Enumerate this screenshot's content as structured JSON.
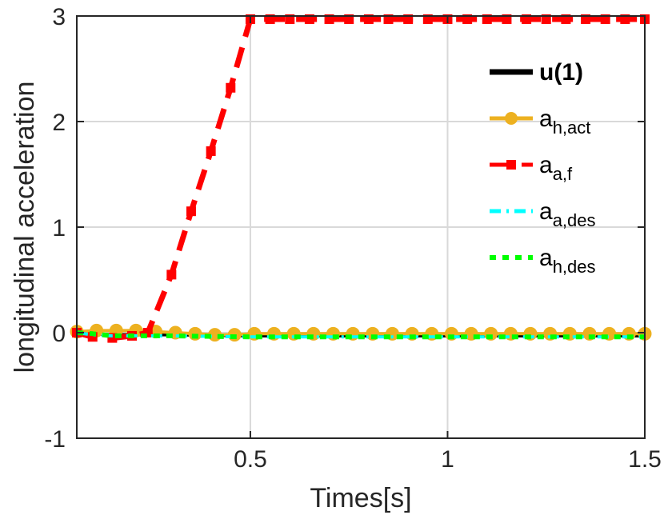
{
  "chart_data": {
    "type": "line",
    "xlabel": "Times[s]",
    "ylabel": "longitudinal acceleration",
    "xlim": [
      0.06,
      1.5
    ],
    "ylim": [
      -1,
      3
    ],
    "xticks": [
      0.5,
      1,
      1.5
    ],
    "xtick_labels": [
      "0.5",
      "1",
      "1.5"
    ],
    "yticks": [
      -1,
      0,
      1,
      2,
      3
    ],
    "ytick_labels": [
      "-1",
      "0",
      "1",
      "2",
      "3"
    ],
    "grid": true,
    "legend_position": "top-right",
    "series": [
      {
        "name": "u(1)",
        "label_main": "u(1)",
        "label_sub": "",
        "color": "#000000",
        "style": "solid",
        "marker": "none",
        "x": [
          0.06,
          0.1,
          0.15,
          0.2,
          0.3,
          0.5,
          0.75,
          1.0,
          1.25,
          1.5
        ],
        "y": [
          0.0,
          -0.01,
          -0.02,
          -0.02,
          -0.02,
          -0.03,
          -0.03,
          -0.03,
          -0.03,
          -0.03
        ]
      },
      {
        "name": "a_h,act",
        "label_main": "a",
        "label_sub": "h,act",
        "color": "#EDB120",
        "style": "solid",
        "marker": "circle",
        "x": [
          0.06,
          0.11,
          0.16,
          0.21,
          0.26,
          0.31,
          0.36,
          0.41,
          0.46,
          0.51,
          0.56,
          0.61,
          0.66,
          0.71,
          0.76,
          0.81,
          0.86,
          0.91,
          0.96,
          1.01,
          1.06,
          1.11,
          1.16,
          1.21,
          1.26,
          1.31,
          1.36,
          1.41,
          1.46,
          1.5
        ],
        "y": [
          0.01,
          0.02,
          0.02,
          0.02,
          0.01,
          0.0,
          -0.01,
          -0.02,
          -0.02,
          -0.01,
          -0.01,
          -0.01,
          -0.01,
          -0.01,
          -0.01,
          -0.01,
          -0.01,
          -0.01,
          -0.01,
          -0.01,
          -0.01,
          -0.01,
          -0.01,
          -0.01,
          -0.01,
          -0.01,
          -0.01,
          -0.01,
          -0.01,
          -0.01
        ]
      },
      {
        "name": "a_a,f",
        "label_main": "a",
        "label_sub": "a,f",
        "color": "#FF0000",
        "style": "dashed",
        "marker": "square",
        "x": [
          0.06,
          0.1,
          0.15,
          0.2,
          0.24,
          0.3,
          0.35,
          0.4,
          0.45,
          0.5,
          0.55,
          0.6,
          0.65,
          0.7,
          0.75,
          0.8,
          0.85,
          0.9,
          0.95,
          1.0,
          1.05,
          1.1,
          1.15,
          1.2,
          1.25,
          1.3,
          1.35,
          1.4,
          1.45,
          1.5
        ],
        "y": [
          0.0,
          -0.04,
          -0.05,
          -0.03,
          0.0,
          0.55,
          1.15,
          1.72,
          2.32,
          2.97,
          2.97,
          2.97,
          2.97,
          2.97,
          2.97,
          2.97,
          2.97,
          2.97,
          2.97,
          2.97,
          2.97,
          2.97,
          2.97,
          2.97,
          2.97,
          2.97,
          2.97,
          2.97,
          2.97,
          2.97
        ]
      },
      {
        "name": "a_a,des",
        "label_main": "a",
        "label_sub": "a,des",
        "color": "#00FFFF",
        "style": "dashdot",
        "marker": "none",
        "x": [
          0.06,
          0.1,
          0.15,
          0.2,
          0.3,
          0.5,
          0.75,
          1.0,
          1.25,
          1.5
        ],
        "y": [
          0.0,
          -0.02,
          -0.03,
          -0.03,
          -0.03,
          -0.04,
          -0.04,
          -0.04,
          -0.04,
          -0.04
        ]
      },
      {
        "name": "a_h,des",
        "label_main": "a",
        "label_sub": "h,des",
        "color": "#00FF00",
        "style": "dotted",
        "marker": "none",
        "x": [
          0.06,
          0.1,
          0.15,
          0.2,
          0.3,
          0.5,
          0.75,
          1.0,
          1.25,
          1.5
        ],
        "y": [
          0.0,
          -0.01,
          -0.03,
          -0.03,
          -0.03,
          -0.04,
          -0.04,
          -0.04,
          -0.04,
          -0.04
        ]
      }
    ]
  }
}
